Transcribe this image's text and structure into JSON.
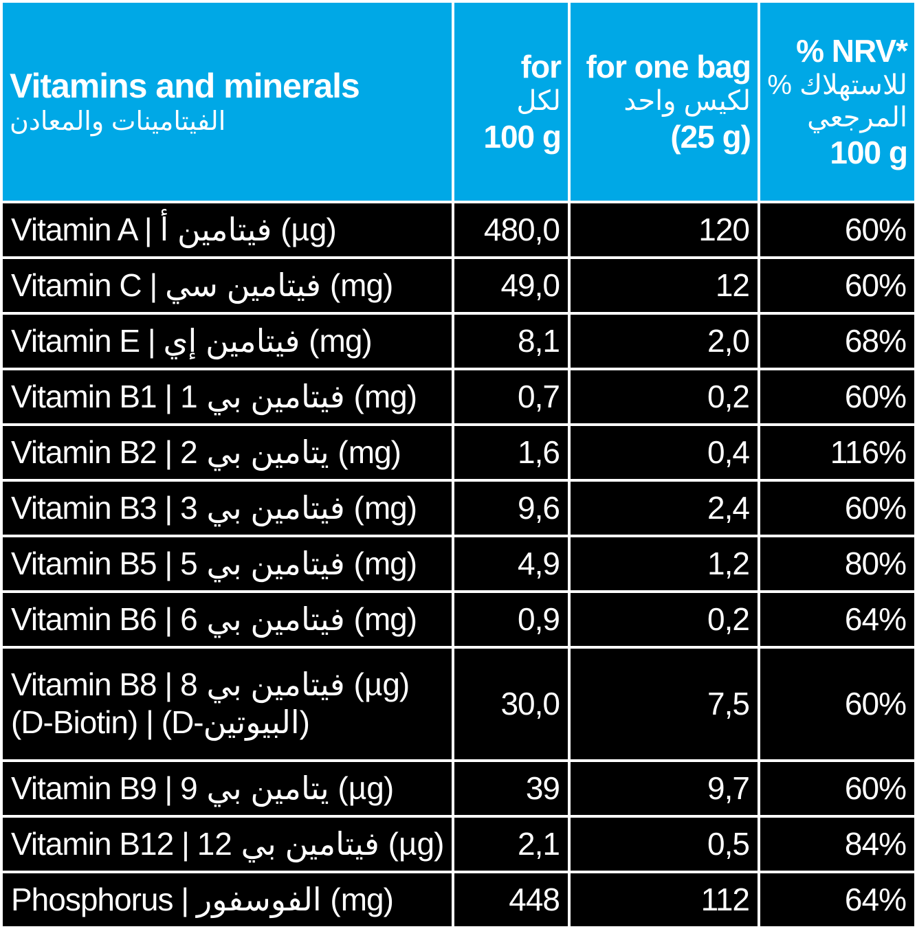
{
  "header": {
    "name_title_en": "Vitamins and minerals",
    "name_title_ar": "الفيتامينات والمعادن",
    "per100_lines": [
      "for",
      "لكل",
      "100 g"
    ],
    "perbag_lines": [
      "for one bag",
      "لكيس واحد",
      "(25 g)"
    ],
    "nrv_lines": [
      "% NRV*",
      "% للاستهلاك",
      "المرجعي",
      "100 g"
    ]
  },
  "rows": [
    {
      "name_lines": [
        "Vitamin A | فيتامين أ (µg)"
      ],
      "per100": "480,0",
      "perbag": "120",
      "nrv": "60%"
    },
    {
      "name_lines": [
        "Vitamin C | فيتامين سي (mg)"
      ],
      "per100": "49,0",
      "perbag": "12",
      "nrv": "60%"
    },
    {
      "name_lines": [
        "Vitamin E | فيتامين إي (mg)"
      ],
      "per100": "8,1",
      "perbag": "2,0",
      "nrv": "68%"
    },
    {
      "name_lines": [
        "Vitamin B1 | فيتامين بي 1 (mg)"
      ],
      "per100": "0,7",
      "perbag": "0,2",
      "nrv": "60%"
    },
    {
      "name_lines": [
        "Vitamin B2 | يتامين بي 2 (mg)"
      ],
      "per100": "1,6",
      "perbag": "0,4",
      "nrv": "116%"
    },
    {
      "name_lines": [
        "Vitamin B3 | فيتامين بي 3 (mg)"
      ],
      "per100": "9,6",
      "perbag": "2,4",
      "nrv": "60%"
    },
    {
      "name_lines": [
        "Vitamin B5 | فيتامين بي 5 (mg)"
      ],
      "per100": "4,9",
      "perbag": "1,2",
      "nrv": "80%"
    },
    {
      "name_lines": [
        "Vitamin B6 | فيتامين بي 6 (mg)"
      ],
      "per100": "0,9",
      "perbag": "0,2",
      "nrv": "64%"
    },
    {
      "name_lines": [
        "Vitamin B8 | فيتامين بي 8 (µg)",
        "(D-Biotin) | (D-البيوتين)"
      ],
      "per100": "30,0",
      "perbag": "7,5",
      "nrv": "60%"
    },
    {
      "name_lines": [
        "Vitamin B9 | يتامين بي 9 (µg)"
      ],
      "per100": "39",
      "perbag": "9,7",
      "nrv": "60%"
    },
    {
      "name_lines": [
        "Vitamin B12 | فيتامين بي 12 (µg)"
      ],
      "per100": "2,1",
      "perbag": "0,5",
      "nrv": "84%"
    },
    {
      "name_lines": [
        "Phosphorus | الفوسفور (mg)"
      ],
      "per100": "448",
      "perbag": "112",
      "nrv": "64%"
    }
  ],
  "colors": {
    "header_bg": "#00a8e6",
    "cell_bg": "#000000",
    "text": "#ffffff",
    "grid": "#ffffff"
  }
}
